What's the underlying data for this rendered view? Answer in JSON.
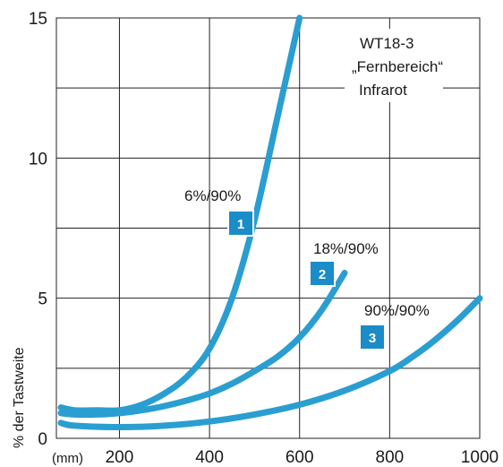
{
  "chart_data": {
    "type": "line",
    "title": "",
    "ylabel": "% der Tastweite",
    "x_unit": "(mm)",
    "xlim": [
      60,
      1000
    ],
    "ylim": [
      0,
      15
    ],
    "x_ticks": [
      200,
      400,
      600,
      800,
      1000
    ],
    "y_ticks": [
      0,
      5,
      10,
      15
    ],
    "grid": true,
    "line_color": "#2a9ed1",
    "badge_color": "#1a8cc8",
    "annotation": [
      "WT18-3",
      "„Fernbereich“",
      "Infrarot"
    ],
    "series": [
      {
        "label": "6%/90%",
        "badge": "1",
        "x": [
          70,
          100,
          150,
          200,
          250,
          300,
          350,
          400,
          450,
          500,
          550,
          600
        ],
        "y": [
          1.1,
          1.0,
          1.0,
          1.0,
          1.2,
          1.6,
          2.2,
          3.2,
          5.0,
          7.8,
          11.4,
          15.0
        ]
      },
      {
        "label": "18%/90%",
        "badge": "2",
        "x": [
          70,
          100,
          150,
          200,
          250,
          300,
          350,
          400,
          450,
          500,
          550,
          600,
          650,
          700
        ],
        "y": [
          0.9,
          0.85,
          0.85,
          0.9,
          1.0,
          1.15,
          1.35,
          1.6,
          1.95,
          2.4,
          2.9,
          3.6,
          4.6,
          5.9
        ]
      },
      {
        "label": "90%/90%",
        "badge": "3",
        "x": [
          70,
          100,
          200,
          300,
          400,
          500,
          600,
          700,
          800,
          850,
          900,
          950,
          1000
        ],
        "y": [
          0.55,
          0.45,
          0.4,
          0.45,
          0.6,
          0.85,
          1.2,
          1.7,
          2.4,
          2.9,
          3.5,
          4.2,
          5.0
        ]
      }
    ]
  }
}
